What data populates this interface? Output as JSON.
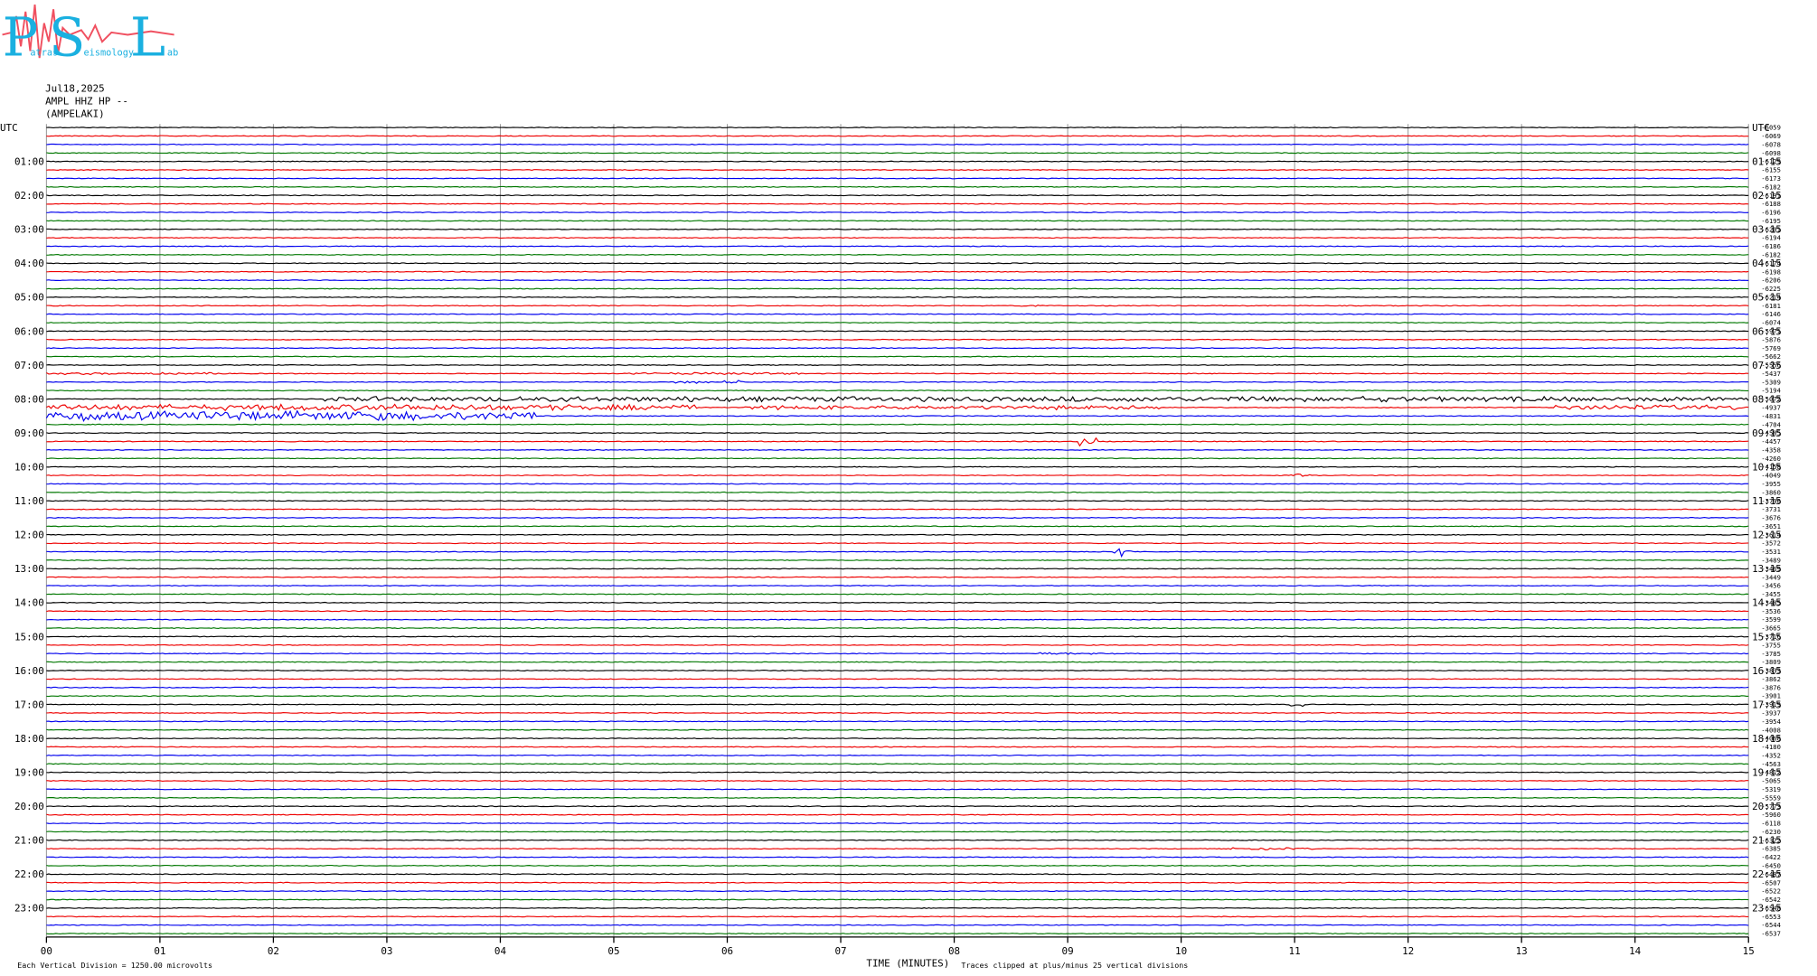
{
  "logo": {
    "letters": [
      "P",
      "S",
      "L"
    ],
    "words": [
      "atras",
      "eismology",
      "ab"
    ]
  },
  "header": {
    "date": "Jul18,2025",
    "channel": "AMPL HHZ HP --",
    "station": "(AMPELAKI)"
  },
  "left_labels": [
    "UTC",
    "01:00",
    "02:00",
    "03:00",
    "04:00",
    "05:00",
    "06:00",
    "07:00",
    "08:00",
    "09:00",
    "10:00",
    "11:00",
    "12:00",
    "13:00",
    "14:00",
    "15:00",
    "16:00",
    "17:00",
    "18:00",
    "19:00",
    "20:00",
    "21:00",
    "22:00",
    "23:00"
  ],
  "right_labels": [
    "UTC",
    "01:15",
    "02:15",
    "03:15",
    "04:15",
    "05:15",
    "06:15",
    "07:15",
    "08:15",
    "09:15",
    "10:15",
    "11:15",
    "12:15",
    "13:15",
    "14:15",
    "15:15",
    "16:15",
    "17:15",
    "18:15",
    "19:15",
    "20:15",
    "21:15",
    "22:15",
    "23:15"
  ],
  "right_values": [
    -6059,
    -6069,
    -6078,
    -6098,
    -6129,
    -6155,
    -6173,
    -6182,
    -6191,
    -6188,
    -6196,
    -6195,
    -6201,
    -6194,
    -6186,
    -6182,
    -6174,
    -6198,
    -6206,
    -6225,
    -6214,
    -6181,
    -6146,
    -6074,
    -5971,
    -5876,
    -5769,
    -5662,
    -5556,
    -5437,
    -5309,
    -5194,
    -5072,
    -4937,
    -4831,
    -4704,
    -4585,
    -4457,
    -4358,
    -4260,
    -4158,
    -4049,
    -3955,
    -3860,
    -3790,
    -3731,
    -3676,
    -3651,
    -3614,
    -3572,
    -3531,
    -3489,
    -3469,
    -3449,
    -3456,
    -3455,
    -3485,
    -3536,
    -3599,
    -3665,
    -3716,
    -3755,
    -3785,
    -3809,
    -3833,
    -3862,
    -3876,
    -3901,
    -3919,
    -3937,
    -3954,
    -4008,
    -4068,
    -4180,
    -4352,
    -4563,
    -4812,
    -5065,
    -5319,
    -5559,
    -5773,
    -5960,
    -6118,
    -6230,
    -6322,
    -6385,
    -6422,
    -6450,
    -6487,
    -6507,
    -6522,
    -6542,
    -6548,
    -6553,
    -6544,
    -6537
  ],
  "x_axis": {
    "ticks": [
      "00",
      "01",
      "02",
      "03",
      "04",
      "05",
      "06",
      "07",
      "08",
      "09",
      "10",
      "11",
      "12",
      "13",
      "14",
      "15"
    ],
    "title": "TIME (MINUTES)"
  },
  "footer": {
    "scale": "Each Vertical Division = 1250.00 microvolts",
    "clip": "Traces clipped at plus/minus 25 vertical divisions"
  }
}
